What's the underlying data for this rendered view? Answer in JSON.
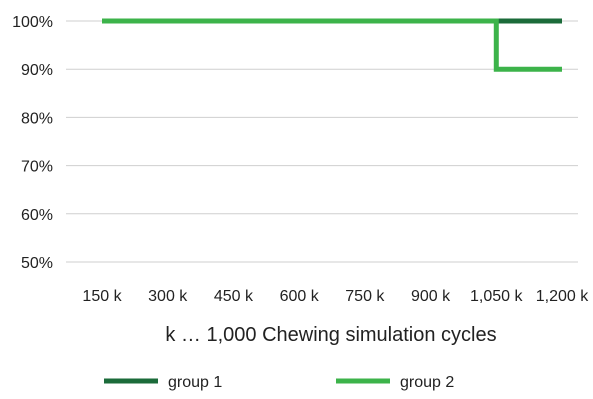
{
  "chart_data": {
    "type": "line",
    "title": "",
    "xlabel": "k … 1,000 Chewing simulation cycles",
    "ylabel": "",
    "categories": [
      "150 k",
      "300 k",
      "450 k",
      "600 k",
      "750 k",
      "900 k",
      "1,050 k",
      "1,200 k"
    ],
    "x": [
      150,
      300,
      450,
      600,
      750,
      900,
      1050,
      1200
    ],
    "ylim": [
      50,
      100
    ],
    "y_ticks": [
      50,
      60,
      70,
      80,
      90,
      100
    ],
    "y_tick_labels": [
      "50%",
      "60%",
      "70%",
      "80%",
      "90%",
      "100%"
    ],
    "grid": "horizontal",
    "legend_position": "bottom",
    "series": [
      {
        "name": "group 1",
        "color": "#1b6b3a",
        "step": [
          {
            "x": 150,
            "y": 100
          },
          {
            "x": 1200,
            "y": 100
          }
        ]
      },
      {
        "name": "group 2",
        "color": "#3cb34a",
        "step": [
          {
            "x": 150,
            "y": 100
          },
          {
            "x": 1050,
            "y": 100
          },
          {
            "x": 1050,
            "y": 90
          },
          {
            "x": 1200,
            "y": 90
          }
        ]
      }
    ]
  }
}
